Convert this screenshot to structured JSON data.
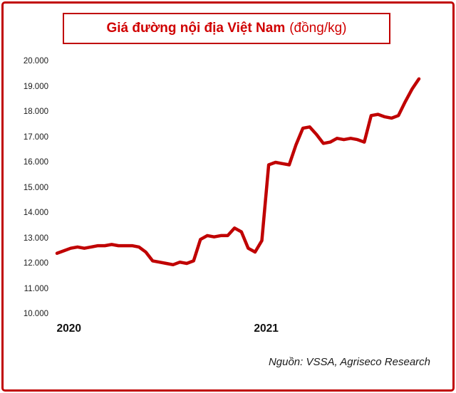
{
  "title": {
    "main": "Giá đường nội địa Việt Nam",
    "unit": "(đồng/kg)"
  },
  "source": "Nguồn: VSSA, Agriseco Research",
  "colors": {
    "accent_red": "#c00000",
    "line_red": "#c00000"
  },
  "chart_data": {
    "type": "line",
    "title": "Giá đường nội địa Việt Nam (đồng/kg)",
    "series_name": "Giá đường nội địa Việt Nam",
    "ylabel": "đồng/kg",
    "xlabel": "",
    "ylim": [
      10000,
      20000
    ],
    "grid": false,
    "legend": "none",
    "line_color": "#c00000",
    "y_ticks": [
      {
        "label": "20.000",
        "value": 20000
      },
      {
        "label": "19.000",
        "value": 19000
      },
      {
        "label": "18.000",
        "value": 18000
      },
      {
        "label": "17.000",
        "value": 17000
      },
      {
        "label": "16.000",
        "value": 16000
      },
      {
        "label": "15.000",
        "value": 15000
      },
      {
        "label": "14.000",
        "value": 14000
      },
      {
        "label": "13.000",
        "value": 13000
      },
      {
        "label": "12.000",
        "value": 12000
      },
      {
        "label": "11.000",
        "value": 11000
      },
      {
        "label": "10.000",
        "value": 10000
      }
    ],
    "x_ticks": [
      {
        "label": "2020",
        "pos": 0.033
      },
      {
        "label": "2021",
        "pos": 0.578
      }
    ],
    "values": [
      12400,
      12500,
      12600,
      12650,
      12600,
      12650,
      12700,
      12700,
      12750,
      12700,
      12700,
      12700,
      12650,
      12450,
      12100,
      12050,
      12000,
      11950,
      12050,
      12000,
      12100,
      12950,
      13100,
      13050,
      13100,
      13100,
      13400,
      13250,
      12600,
      12450,
      12900,
      15900,
      16000,
      15950,
      15900,
      16700,
      17350,
      17400,
      17100,
      16750,
      16800,
      16950,
      16900,
      16950,
      16900,
      16800,
      17850,
      17900,
      17800,
      17750,
      17850,
      18400,
      18900,
      19300
    ]
  }
}
